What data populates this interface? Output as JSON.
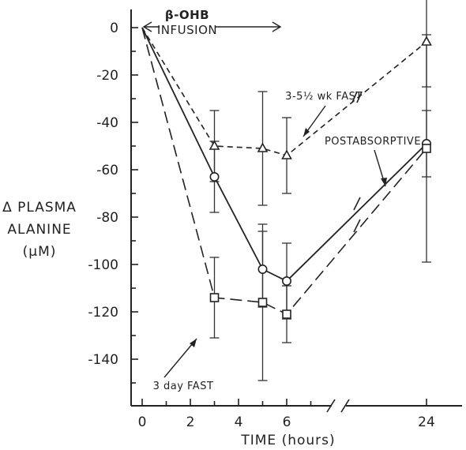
{
  "chart_data": {
    "type": "line",
    "title": "",
    "xlabel": "TIME (hours)",
    "ylabel": [
      "Δ PLASMA",
      "ALANINE",
      "(μM)"
    ],
    "x_ticks": [
      "0",
      "2",
      "4",
      "6",
      "24"
    ],
    "y_ticks": [
      "0",
      "-20",
      "-40",
      "-60",
      "-80",
      "-100",
      "-120",
      "-140"
    ],
    "ylim": [
      -160,
      10
    ],
    "x_axis_break": "between 6 and 24 hours",
    "grid": false,
    "infusion": {
      "label_line1": "β-OHB",
      "label_line2": "INFUSION",
      "x_start": 0,
      "x_end": 6
    },
    "series": [
      {
        "name": "3-5½ wk FAST",
        "marker": "triangle",
        "line_style": "short-dash",
        "x": [
          0,
          3,
          5,
          6,
          24
        ],
        "y": [
          0,
          -50,
          -51,
          -54,
          -6
        ],
        "error": [
          null,
          15,
          24,
          16,
          19
        ]
      },
      {
        "name": "POSTABSORPTIVE",
        "marker": "circle",
        "line_style": "solid",
        "x": [
          0,
          3,
          5,
          6,
          24
        ],
        "y": [
          0,
          -63,
          -102,
          -107,
          -49
        ],
        "error": [
          null,
          15,
          16,
          16,
          14
        ]
      },
      {
        "name": "3 day FAST",
        "marker": "square",
        "line_style": "long-dash",
        "x": [
          0,
          3,
          5,
          6,
          24
        ],
        "y": [
          0,
          -114,
          -116,
          -121,
          -51
        ],
        "error": [
          null,
          17,
          33,
          12,
          48
        ]
      }
    ]
  }
}
